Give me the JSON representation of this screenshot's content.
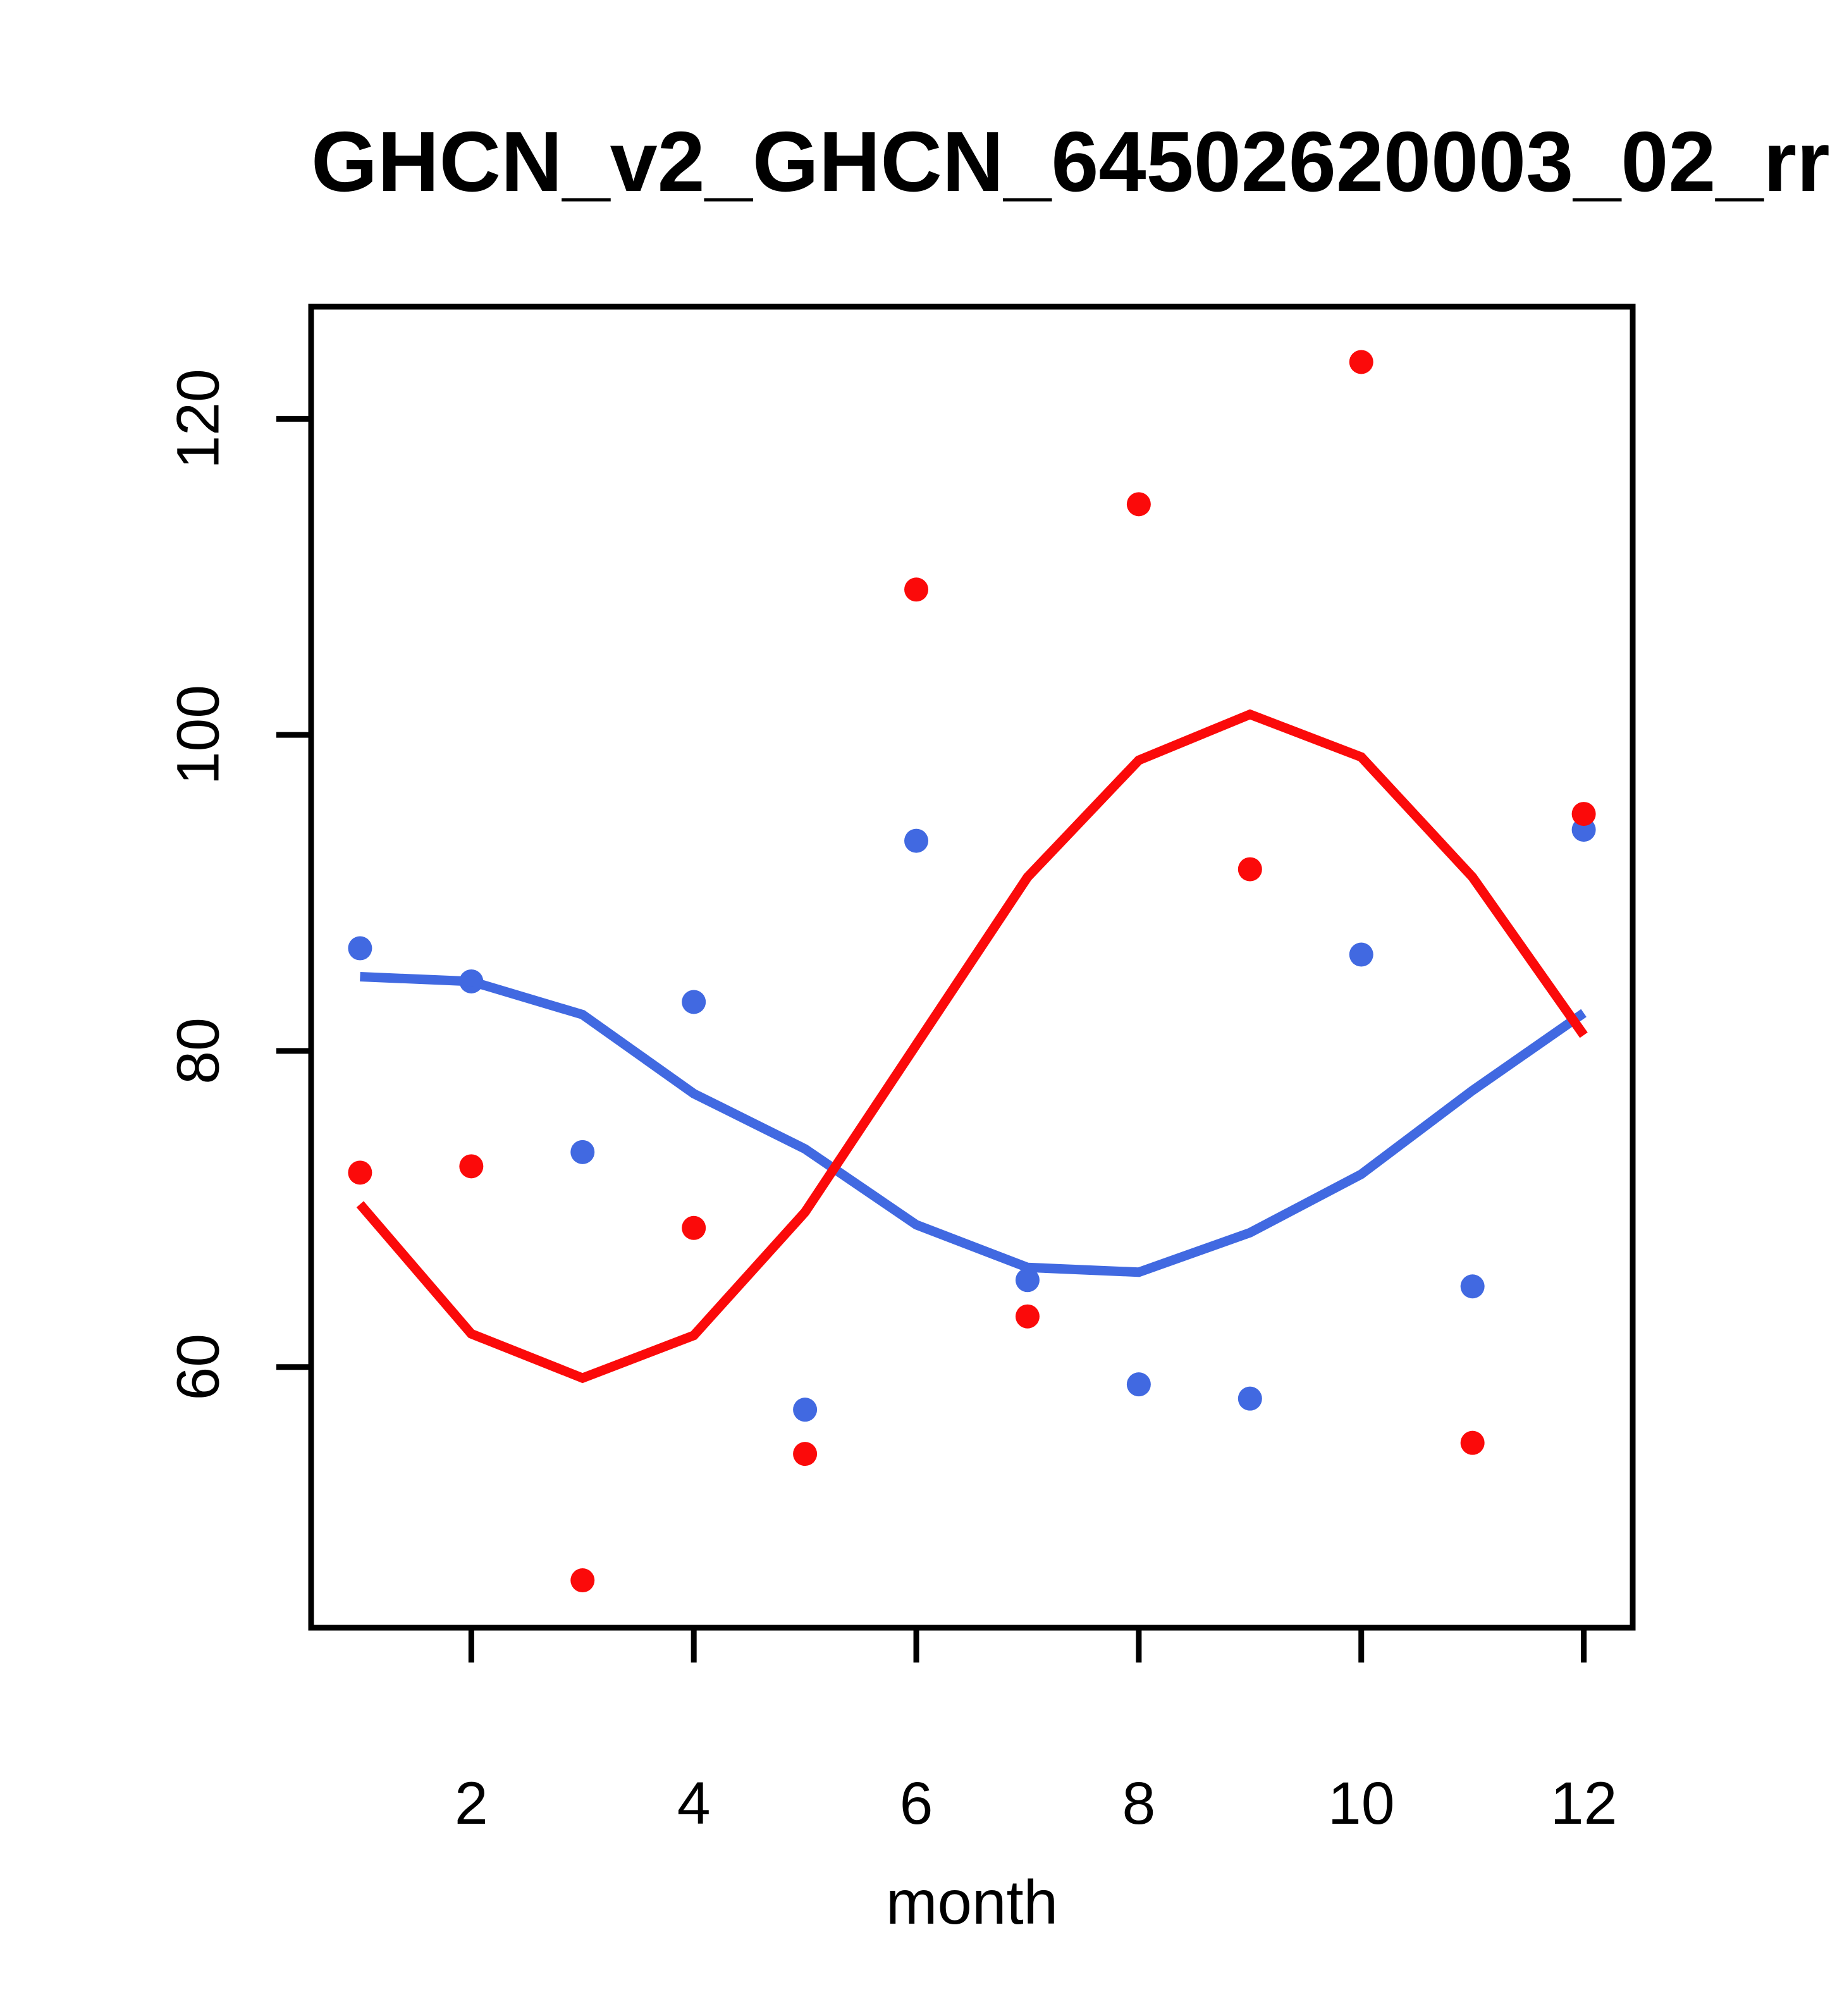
{
  "title": "GHCN_v2_GHCN_64502620003_02_rr",
  "xlabel": "month",
  "ylabel": "",
  "colors": {
    "red": "#FB0A0A",
    "blue": "#4169E1",
    "axis": "#000000",
    "background": "#FFFFFF"
  },
  "chart_data": {
    "type": "scatter",
    "title": "GHCN_v2_GHCN_64502620003_02_rr",
    "xlabel": "month",
    "ylabel": "",
    "x": [
      1,
      2,
      3,
      4,
      5,
      6,
      7,
      8,
      9,
      10,
      11,
      12
    ],
    "series": [
      {
        "name": "blue-monthly-points",
        "style": "points",
        "color_key": "blue",
        "values": [
          86.5,
          84.4,
          73.6,
          83.1,
          57.3,
          93.3,
          65.5,
          58.9,
          58.0,
          86.1,
          65.1,
          94.0
        ]
      },
      {
        "name": "red-monthly-points",
        "style": "points",
        "color_key": "red",
        "values": [
          72.3,
          72.7,
          46.5,
          68.8,
          54.5,
          109.2,
          63.2,
          114.6,
          91.5,
          123.6,
          55.2,
          95.0
        ]
      },
      {
        "name": "blue-lowess-line",
        "style": "line",
        "color_key": "blue",
        "values": [
          84.7,
          84.4,
          82.3,
          77.3,
          73.8,
          69.0,
          66.3,
          66.0,
          68.5,
          72.2,
          77.5,
          82.4
        ]
      },
      {
        "name": "red-lowess-line",
        "style": "line",
        "color_key": "red",
        "values": [
          70.3,
          62.1,
          59.3,
          62.0,
          69.8,
          80.4,
          91.0,
          98.4,
          101.3,
          98.6,
          91.0,
          81.0
        ]
      }
    ],
    "xticks": [
      2,
      4,
      6,
      8,
      10,
      12
    ],
    "yticks": [
      60,
      80,
      100,
      120
    ],
    "xlim": [
      0.56,
      12.44
    ],
    "ylim": [
      43.5,
      127.1
    ],
    "grid": false,
    "legend": "none"
  }
}
